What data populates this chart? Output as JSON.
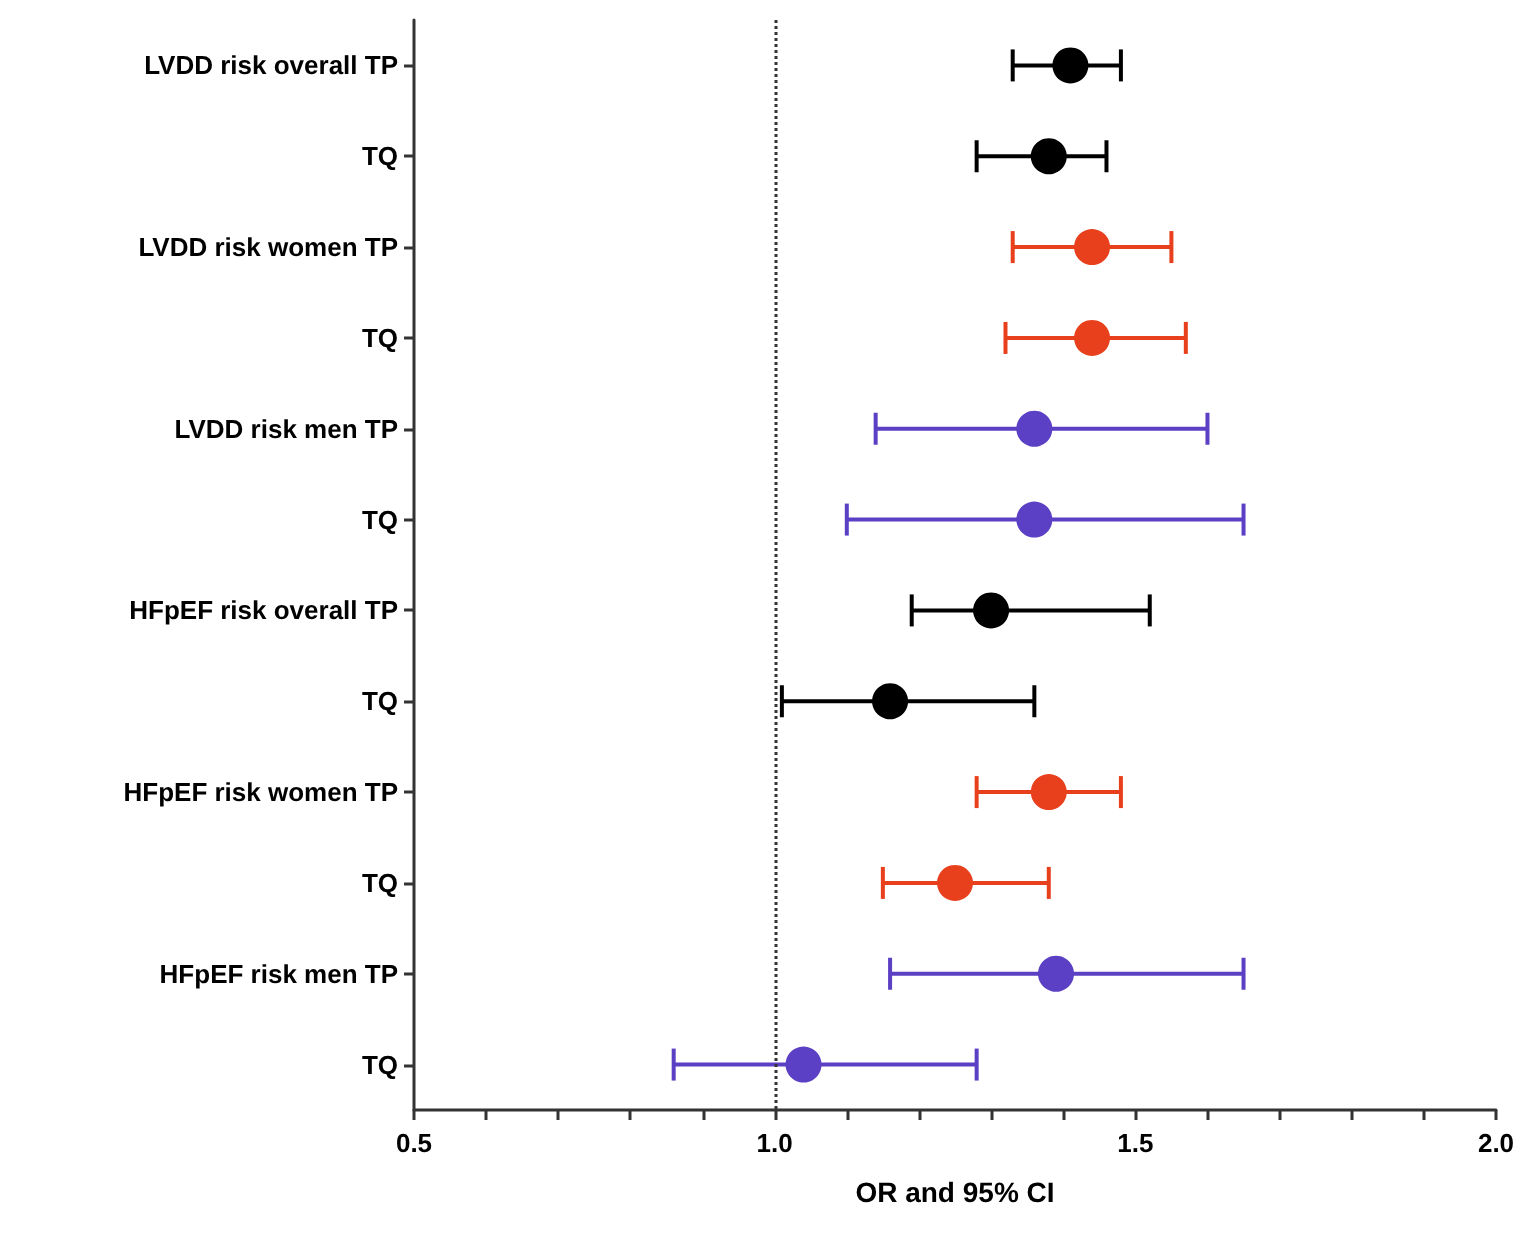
{
  "chart_data": {
    "type": "scatter",
    "orientation": "horizontal",
    "xlabel": "OR and 95% CI",
    "categories": [
      "LVDD risk overall TP",
      "TQ",
      "LVDD risk women TP",
      "TQ",
      "LVDD risk men TP",
      "TQ",
      "HFpEF risk overall TP",
      "TQ",
      "HFpEF risk women TP",
      "TQ",
      "HFpEF risk men TP",
      "TQ"
    ],
    "series": [
      {
        "color": "#000000",
        "values": [
          1.41,
          1.38,
          null,
          null,
          null,
          null,
          1.3,
          1.16,
          null,
          null,
          null,
          null
        ],
        "errors": [
          [
            1.33,
            1.48
          ],
          [
            1.28,
            1.46
          ],
          null,
          null,
          null,
          null,
          [
            1.19,
            1.52
          ],
          [
            1.01,
            1.36
          ],
          null,
          null,
          null,
          null
        ]
      },
      {
        "color": "#e8401c",
        "values": [
          null,
          null,
          1.44,
          1.44,
          null,
          null,
          null,
          null,
          1.38,
          1.25,
          null,
          null
        ],
        "errors": [
          null,
          null,
          [
            1.33,
            1.55
          ],
          [
            1.32,
            1.57
          ],
          null,
          null,
          null,
          null,
          [
            1.28,
            1.48
          ],
          [
            1.15,
            1.38
          ],
          null,
          null
        ]
      },
      {
        "color": "#5b3fc4",
        "values": [
          null,
          null,
          null,
          null,
          1.36,
          1.36,
          null,
          null,
          null,
          null,
          1.39,
          1.04
        ],
        "errors": [
          null,
          null,
          null,
          null,
          [
            1.14,
            1.6
          ],
          [
            1.1,
            1.65
          ],
          null,
          null,
          null,
          null,
          [
            1.16,
            1.65
          ],
          [
            0.86,
            1.28
          ]
        ]
      }
    ],
    "xlim": [
      0.5,
      2.0
    ],
    "xticks": [
      0.5,
      {
        "value": 0.6,
        "label": null
      },
      {
        "value": 0.7,
        "label": null
      },
      {
        "value": 0.8,
        "label": null
      },
      {
        "value": 0.9,
        "label": null
      },
      "1.0",
      {
        "value": 1.1,
        "label": null
      },
      {
        "value": 1.2,
        "label": null
      },
      {
        "value": 1.3,
        "label": null
      },
      {
        "value": 1.4,
        "label": null
      },
      1.5,
      {
        "value": 1.6,
        "label": null
      },
      {
        "value": 1.7,
        "label": null
      },
      {
        "value": 1.8,
        "label": null
      },
      {
        "value": 1.9,
        "label": null
      },
      "2.0"
    ],
    "ref_lines": [
      {
        "axis": "x",
        "value": 1.0,
        "line_style": "dotted",
        "color": "#333333"
      }
    ],
    "marker": "circle"
  }
}
